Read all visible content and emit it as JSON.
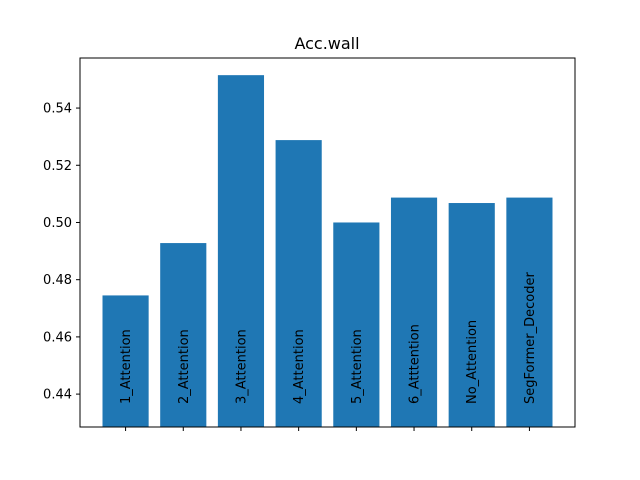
{
  "chart_data": {
    "type": "bar",
    "title": "Acc.wall",
    "xlabel": "",
    "ylabel": "",
    "categories": [
      "1_Attention",
      "2_Attention",
      "3_Attention",
      "4_Attention",
      "5_Attention",
      "6_Atttention",
      "No_Attention",
      "SegFormer_Decoder"
    ],
    "values": [
      0.4745,
      0.4928,
      0.5515,
      0.5288,
      0.5,
      0.5087,
      0.5068,
      0.5087
    ],
    "ylim": [
      0.4285,
      0.5575
    ],
    "yticks": [
      0.44,
      0.46,
      0.48,
      0.5,
      0.52,
      0.54
    ],
    "ytick_labels": [
      "0.44",
      "0.46",
      "0.48",
      "0.50",
      "0.52",
      "0.54"
    ],
    "bar_color": "#1f77b4",
    "grid": false,
    "category_labels_inside_bars": true
  }
}
